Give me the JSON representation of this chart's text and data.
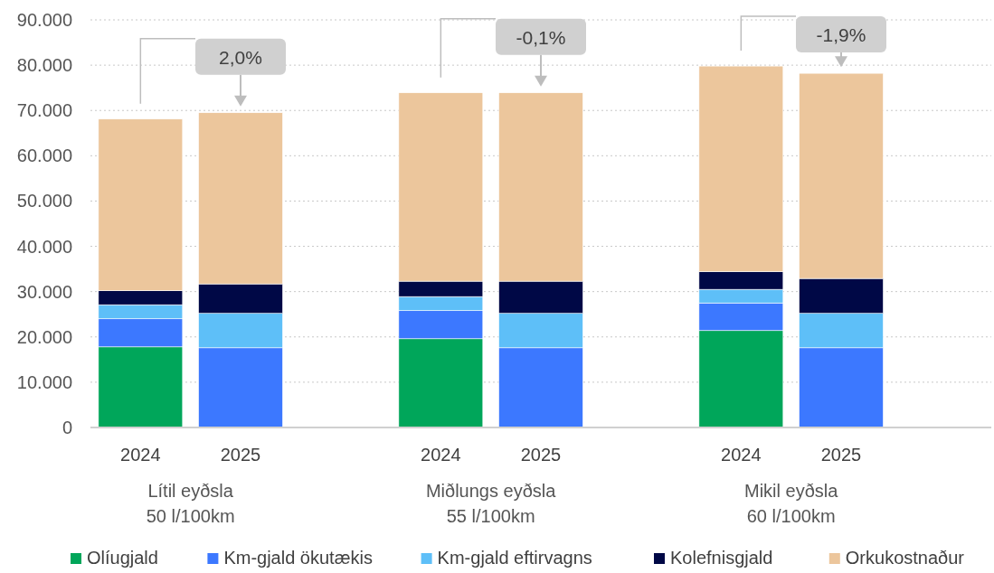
{
  "chart_data": {
    "type": "bar",
    "stacked": true,
    "categories": [
      "2024",
      "2025",
      "2024",
      "2025",
      "2024",
      "2025"
    ],
    "series": [
      {
        "name": "Olíugjald",
        "color": "#00a65a",
        "values": [
          17800,
          null,
          19600,
          null,
          21400,
          null
        ]
      },
      {
        "name": "Km-gjald ökutækis",
        "color": "#3c78ff",
        "values": [
          6200,
          17600,
          6200,
          17600,
          6100,
          17600
        ]
      },
      {
        "name": "Km-gjald eftirvagns",
        "color": "#5ebff8",
        "values": [
          3100,
          7600,
          3100,
          7600,
          3000,
          7600
        ]
      },
      {
        "name": "Kolefnisgjald",
        "color": "#000846",
        "values": [
          3100,
          6500,
          3400,
          7100,
          3900,
          7700
        ]
      },
      {
        "name": "Orkukostnaður",
        "color": "#ecc69c",
        "values": [
          37900,
          37800,
          41600,
          41600,
          45400,
          45300
        ]
      }
    ],
    "ylim": [
      0,
      90000
    ],
    "yticks": [
      {
        "value": 0,
        "label": "0"
      },
      {
        "value": 10000,
        "label": "10.000"
      },
      {
        "value": 20000,
        "label": "20.000"
      },
      {
        "value": 30000,
        "label": "30.000"
      },
      {
        "value": 40000,
        "label": "40.000"
      },
      {
        "value": 50000,
        "label": "50.000"
      },
      {
        "value": 60000,
        "label": "60.000"
      },
      {
        "value": 70000,
        "label": "70.000"
      },
      {
        "value": 80000,
        "label": "80.000"
      },
      {
        "value": 90000,
        "label": "90.000"
      }
    ],
    "grid": "y",
    "legend": "bottom",
    "annotations": [
      "2,0%",
      "-0,1%",
      "-1,9%",
      "Lítil eyðsla\n50 l/100km",
      "Miðlungs eyðsla\n55 l/100km",
      "Mikil eyðsla\n60 l/100km"
    ]
  }
}
